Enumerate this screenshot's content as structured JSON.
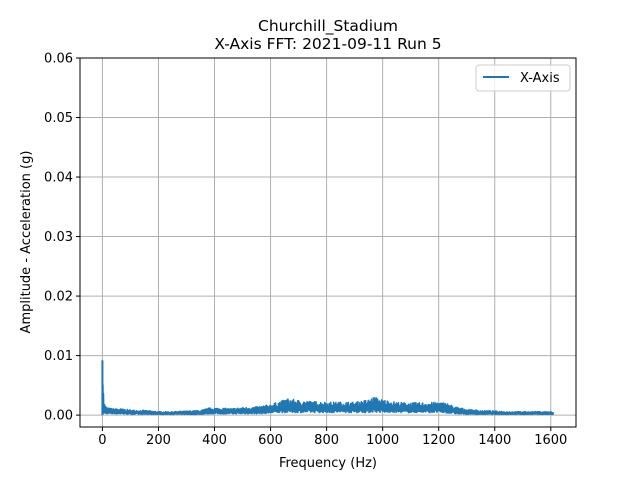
{
  "chart_data": {
    "type": "line",
    "title": "Churchill_Stadium",
    "subtitle": "X-Axis FFT: 2021-09-11 Run 5",
    "xlabel": "Frequency (Hz)",
    "ylabel": "Amplitude - Acceleration (g)",
    "xlim": [
      -80,
      1690
    ],
    "ylim": [
      -0.002,
      0.06
    ],
    "xticks": [
      0,
      200,
      400,
      600,
      800,
      1000,
      1200,
      1400,
      1600
    ],
    "xtick_labels": [
      "0",
      "200",
      "400",
      "600",
      "800",
      "1000",
      "1200",
      "1400",
      "1600"
    ],
    "yticks": [
      0.0,
      0.01,
      0.02,
      0.03,
      0.04,
      0.05,
      0.06
    ],
    "ytick_labels": [
      "0.00",
      "0.01",
      "0.02",
      "0.03",
      "0.04",
      "0.05",
      "0.06"
    ],
    "grid": true,
    "legend": "top-right",
    "colors": {
      "series": "#1f77b4",
      "grid": "#b0b0b0",
      "axes": "#000000"
    },
    "series": [
      {
        "name": "X-Axis",
        "envelope_note_free": true,
        "x": [
          0,
          2,
          5,
          10,
          20,
          40,
          60,
          100,
          150,
          200,
          250,
          300,
          350,
          380,
          420,
          460,
          500,
          550,
          600,
          640,
          660,
          700,
          750,
          800,
          850,
          900,
          950,
          970,
          990,
          1050,
          1100,
          1150,
          1200,
          1230,
          1260,
          1300,
          1350,
          1400,
          1450,
          1500,
          1550,
          1600,
          1610
        ],
        "y_max": [
          0.0092,
          0.0075,
          0.0025,
          0.0016,
          0.0012,
          0.0011,
          0.0011,
          0.0009,
          0.0008,
          0.0006,
          0.0006,
          0.0007,
          0.0008,
          0.0012,
          0.0012,
          0.0011,
          0.0013,
          0.0014,
          0.0018,
          0.0024,
          0.0028,
          0.0025,
          0.0023,
          0.0022,
          0.0022,
          0.0022,
          0.0026,
          0.0031,
          0.0027,
          0.0022,
          0.0021,
          0.0021,
          0.0022,
          0.002,
          0.0014,
          0.001,
          0.0008,
          0.0007,
          0.0006,
          0.0006,
          0.0006,
          0.0006,
          0.0004
        ],
        "y_min": [
          0.0,
          0.0,
          0.0,
          0.0002,
          0.0002,
          0.0002,
          0.0002,
          0.0001,
          0.0001,
          0.0001,
          0.0001,
          0.0001,
          0.0001,
          0.0002,
          0.0002,
          0.0002,
          0.0002,
          0.0002,
          0.0003,
          0.0004,
          0.0004,
          0.0004,
          0.0004,
          0.0004,
          0.0004,
          0.0004,
          0.0004,
          0.0005,
          0.0004,
          0.0004,
          0.0004,
          0.0004,
          0.0004,
          0.0003,
          0.0002,
          0.0001,
          0.0001,
          0.0001,
          0.0001,
          0.0001,
          0.0001,
          0.0001,
          0.0001
        ]
      }
    ]
  }
}
